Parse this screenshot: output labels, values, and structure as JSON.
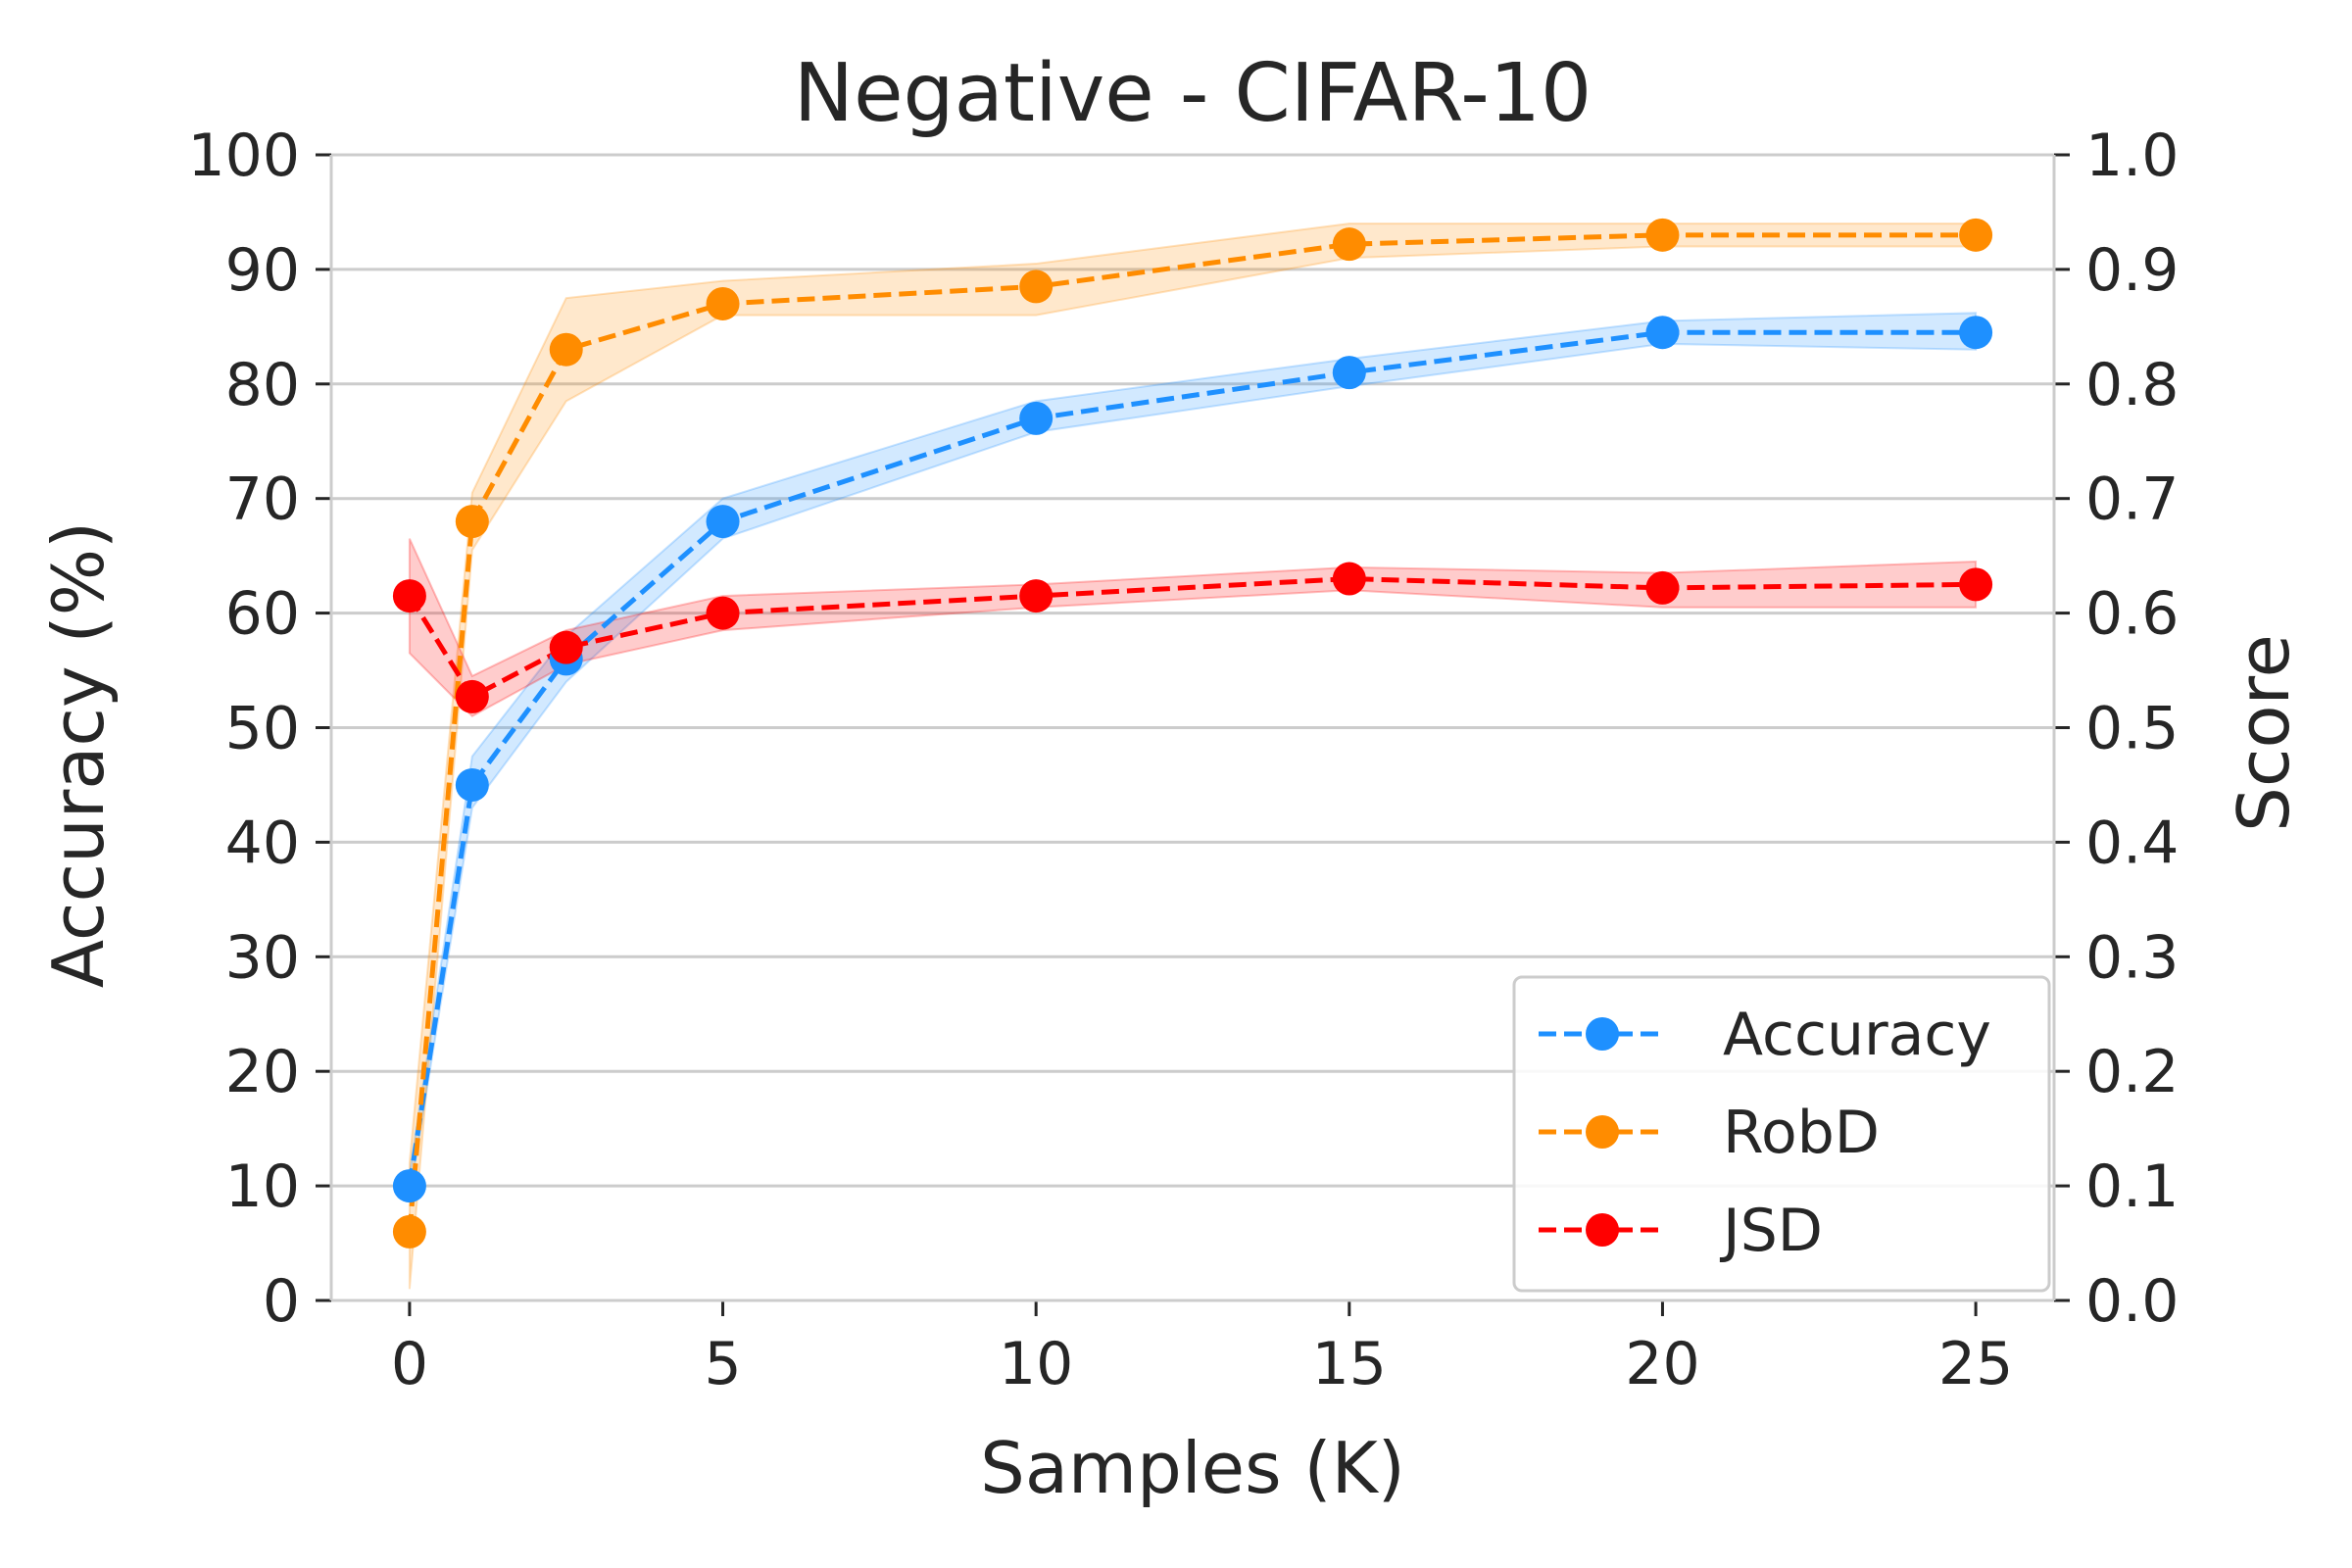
{
  "chart_data": {
    "type": "line",
    "title": "Negative - CIFAR-10",
    "xlabel": "Samples (K)",
    "ylabel": "Accuracy (%)",
    "y2label": "Score",
    "xlim": [
      -1.25,
      26.25
    ],
    "ylim": [
      0,
      100
    ],
    "y2lim": [
      0.0,
      1.0
    ],
    "grid": true,
    "legend_position": "lower-right",
    "x_ticks": [
      0,
      5,
      10,
      15,
      20,
      25
    ],
    "y_ticks": [
      0,
      10,
      20,
      30,
      40,
      50,
      60,
      70,
      80,
      90,
      100
    ],
    "y2_ticks": [
      "0.0",
      "0.1",
      "0.2",
      "0.3",
      "0.4",
      "0.5",
      "0.6",
      "0.7",
      "0.8",
      "0.9",
      "1.0"
    ],
    "x_tick_labels": [
      "0",
      "5",
      "10",
      "15",
      "20",
      "25"
    ],
    "y_tick_labels": [
      "0",
      "10",
      "20",
      "30",
      "40",
      "50",
      "60",
      "70",
      "80",
      "90",
      "100"
    ],
    "x": [
      0,
      1,
      2.5,
      5,
      10,
      15,
      20,
      25
    ],
    "series": [
      {
        "name": "Accuracy",
        "axis": "left",
        "color": "#1e90ff",
        "values": [
          10,
          45,
          56,
          68,
          77,
          81,
          84.5,
          84.5
        ],
        "lower": [
          9,
          43,
          54,
          66.5,
          75.8,
          79.8,
          83.5,
          83
        ],
        "upper": [
          11,
          47.5,
          58,
          70,
          78.5,
          82.2,
          85.5,
          86.2
        ]
      },
      {
        "name": "RobD",
        "axis": "right",
        "color": "#ff8c00",
        "values": [
          0.06,
          0.68,
          0.83,
          0.87,
          0.885,
          0.922,
          0.93,
          0.93
        ],
        "lower": [
          0.01,
          0.655,
          0.785,
          0.86,
          0.86,
          0.91,
          0.92,
          0.92
        ],
        "upper": [
          0.12,
          0.705,
          0.875,
          0.89,
          0.905,
          0.94,
          0.94,
          0.94
        ]
      },
      {
        "name": "JSD",
        "axis": "right",
        "color": "#ff0000",
        "values": [
          0.615,
          0.527,
          0.57,
          0.6,
          0.615,
          0.63,
          0.622,
          0.625
        ],
        "lower": [
          0.565,
          0.51,
          0.555,
          0.585,
          0.605,
          0.62,
          0.605,
          0.605
        ],
        "upper": [
          0.665,
          0.545,
          0.585,
          0.615,
          0.625,
          0.64,
          0.635,
          0.645
        ]
      }
    ]
  }
}
